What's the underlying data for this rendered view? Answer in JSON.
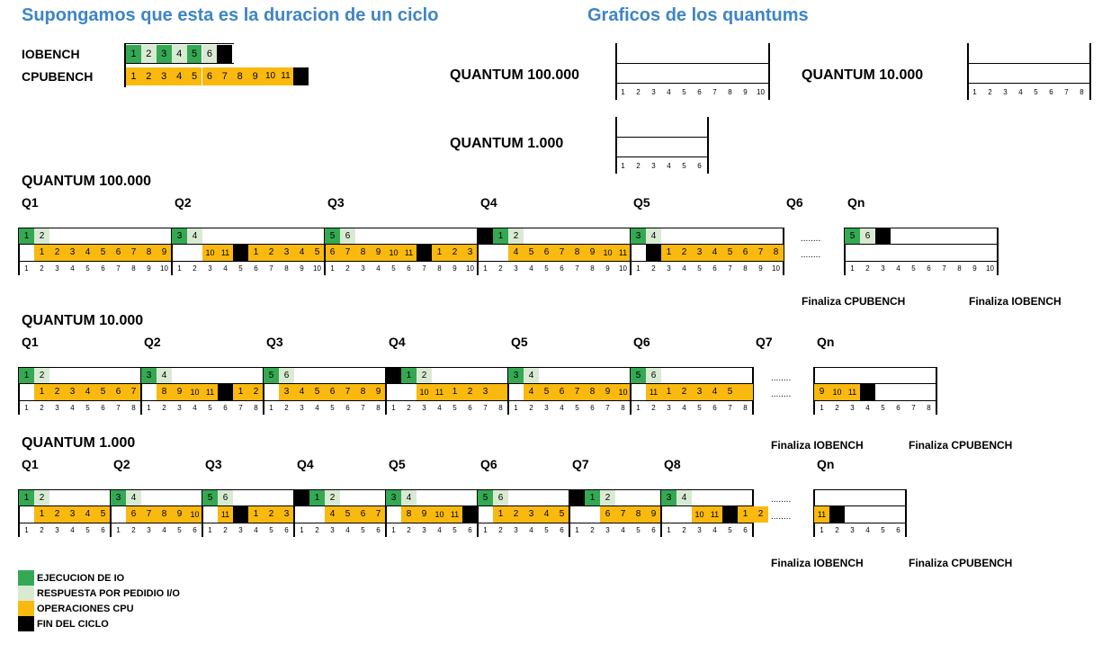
{
  "titles": {
    "left": "Supongamos que esta es la duracion de un ciclo",
    "right": "Graficos de los quantums"
  },
  "cycle": {
    "iobench_label": "IOBENCH",
    "cpubench_label": "CPUBENCH",
    "io_cells": [
      "1",
      "2",
      "3",
      "4",
      "5",
      "6"
    ],
    "cpu_cells": [
      "1",
      "2",
      "3",
      "4",
      "5",
      "6",
      "7",
      "8",
      "9",
      "10",
      "11"
    ]
  },
  "empty_graphs": {
    "q100000": {
      "label": "QUANTUM 100.000",
      "ticks": [
        "1",
        "2",
        "3",
        "4",
        "5",
        "6",
        "7",
        "8",
        "9",
        "10"
      ]
    },
    "q10000": {
      "label": "QUANTUM 10.000",
      "ticks": [
        "1",
        "2",
        "3",
        "4",
        "5",
        "6",
        "7",
        "8"
      ]
    },
    "q1000": {
      "label": "QUANTUM 1.000",
      "ticks": [
        "1",
        "2",
        "3",
        "4",
        "5",
        "6"
      ]
    }
  },
  "sections": {
    "s100000": {
      "title": "QUANTUM 100.000",
      "q_labels": [
        "Q1",
        "Q2",
        "Q3",
        "Q4",
        "Q5",
        "Q6",
        "Qn"
      ],
      "dots": "........",
      "finaliza_cpu": "Finaliza CPUBENCH",
      "finaliza_io": "Finaliza IOBENCH"
    },
    "s10000": {
      "title": "QUANTUM 10.000",
      "q_labels": [
        "Q1",
        "Q2",
        "Q3",
        "Q4",
        "Q5",
        "Q6",
        "Q7",
        "Qn"
      ],
      "dots": "........",
      "finaliza_io": "Finaliza IOBENCH",
      "finaliza_cpu": "Finaliza CPUBENCH"
    },
    "s1000": {
      "title": "QUANTUM 1.000",
      "q_labels": [
        "Q1",
        "Q2",
        "Q3",
        "Q4",
        "Q5",
        "Q6",
        "Q7",
        "Q8",
        "Qn"
      ],
      "dots": "........",
      "finaliza_io": "Finaliza IOBENCH",
      "finaliza_cpu": "Finaliza CPUBENCH"
    }
  },
  "timelines": {
    "q100000": {
      "ticks": [
        "1",
        "2",
        "3",
        "4",
        "5",
        "6",
        "7",
        "8",
        "9",
        "10"
      ],
      "blocks": [
        {
          "io": "EE",
          "cpu": "_CCCCCCCCC",
          "io_text": [
            "1",
            "2"
          ],
          "cpu_text": [
            "1",
            "2",
            "3",
            "4",
            "5",
            "6",
            "7",
            "8",
            "9"
          ]
        },
        {
          "io": "EE",
          "cpu": "__CCKCCCCCC",
          "io_text": [
            "3",
            "4"
          ],
          "cpu_text": [
            "10",
            "11",
            "1",
            "2",
            "3",
            "4",
            "5",
            "6"
          ]
        },
        {
          "io": "EE",
          "cpu": "_CCCCCKCCC",
          "io_text": [
            "5",
            "6"
          ],
          "cpu_text": [
            "7",
            "8",
            "9",
            "10",
            "11",
            "1",
            "2",
            "3"
          ]
        },
        {
          "io": "KEE",
          "cpu": "__CCCCCCCC",
          "io_text": [
            "1",
            "2"
          ],
          "cpu_text": [
            "4",
            "5",
            "6",
            "7",
            "8",
            "9",
            "10",
            "11"
          ]
        },
        {
          "io": "EE",
          "cpu": "_KCCCCCCCC",
          "io_text": [
            "3",
            "4"
          ],
          "cpu_text": [
            "1",
            "2",
            "3",
            "4",
            "5",
            "6",
            "7",
            "8"
          ]
        },
        {
          "io": "EEK",
          "cpu": "",
          "io_text": [
            "5",
            "6"
          ],
          "cpu_text": []
        }
      ]
    },
    "q10000": {
      "ticks": [
        "1",
        "2",
        "3",
        "4",
        "5",
        "6",
        "7",
        "8"
      ],
      "blocks": [
        {
          "io": "EE",
          "cpu": "_CCCCCCC",
          "io_text": [
            "1",
            "2"
          ],
          "cpu_text": [
            "1",
            "2",
            "3",
            "4",
            "5",
            "6",
            "7"
          ]
        },
        {
          "io": "EE",
          "cpu": "_CCCCKCC",
          "io_text": [
            "3",
            "4"
          ],
          "cpu_text": [
            "8",
            "9",
            "10",
            "11",
            "1",
            "2"
          ]
        },
        {
          "io": "EE",
          "cpu": "_CCCCCCC",
          "io_text": [
            "5",
            "6"
          ],
          "cpu_text": [
            "3",
            "4",
            "5",
            "6",
            "7",
            "8",
            "9"
          ]
        },
        {
          "io": "KEE",
          "cpu": "__CCCCCC",
          "io_text": [
            "1",
            "2"
          ],
          "cpu_text": [
            "10",
            "11",
            "1",
            "2",
            "3"
          ]
        },
        {
          "io": "EE",
          "cpu": "_CCCCCCC",
          "io_text": [
            "3",
            "4"
          ],
          "cpu_text": [
            "4",
            "5",
            "6",
            "7",
            "8",
            "9",
            "10"
          ]
        },
        {
          "io": "EE",
          "cpu": "_CCCCCCC",
          "io_text": [
            "5",
            "6"
          ],
          "cpu_text": [
            "11",
            "1",
            "2",
            "3",
            "4",
            "5"
          ]
        },
        {
          "io": "",
          "cpu": "CCCK",
          "io_text": [],
          "cpu_text": [
            "9",
            "10",
            "11"
          ]
        }
      ]
    },
    "q1000": {
      "ticks": [
        "1",
        "2",
        "3",
        "4",
        "5",
        "6"
      ],
      "blocks": [
        {
          "io": "EE",
          "cpu": "_CCCCC",
          "io_text": [
            "1",
            "2"
          ],
          "cpu_text": [
            "1",
            "2",
            "3",
            "4",
            "5"
          ]
        },
        {
          "io": "EE",
          "cpu": "_CCCCC",
          "io_text": [
            "3",
            "4"
          ],
          "cpu_text": [
            "6",
            "7",
            "8",
            "9",
            "10"
          ]
        },
        {
          "io": "EE",
          "cpu": "_CKCCC",
          "io_text": [
            "5",
            "6"
          ],
          "cpu_text": [
            "11",
            "1",
            "2",
            "3"
          ]
        },
        {
          "io": "KEE",
          "cpu": "__CCCC",
          "io_text": [
            "1",
            "2"
          ],
          "cpu_text": [
            "4",
            "5",
            "6",
            "7"
          ]
        },
        {
          "io": "EE",
          "cpu": "_CCCCK",
          "io_text": [
            "3",
            "4"
          ],
          "cpu_text": [
            "8",
            "9",
            "10",
            "11"
          ]
        },
        {
          "io": "EE",
          "cpu": "_CCCCC",
          "io_text": [
            "5",
            "6"
          ],
          "cpu_text": [
            "1",
            "2",
            "3",
            "4",
            "5"
          ]
        },
        {
          "io": "KEE",
          "cpu": "__CCCC",
          "io_text": [
            "1",
            "2"
          ],
          "cpu_text": [
            "6",
            "7",
            "8",
            "9"
          ]
        },
        {
          "io": "EE",
          "cpu": "__CCKCC",
          "io_text": [
            "3",
            "4"
          ],
          "cpu_text": [
            "10",
            "11",
            "1",
            "2"
          ]
        },
        {
          "io": "",
          "cpu": "CK",
          "io_text": [],
          "cpu_text": [
            "11"
          ]
        }
      ]
    }
  },
  "colors": {
    "exec_io": "#34a853",
    "resp_io": "#d9ead3",
    "cpu": "#f9b90e",
    "end": "#000000"
  },
  "legend": [
    {
      "label": "EJECUCION DE IO",
      "color": "#34a853"
    },
    {
      "label": "RESPUESTA POR PEDIDIO I/O",
      "color": "#d9ead3"
    },
    {
      "label": "OPERACIONES CPU",
      "color": "#f9b90e"
    },
    {
      "label": "FIN DEL CICLO",
      "color": "#000000"
    }
  ]
}
